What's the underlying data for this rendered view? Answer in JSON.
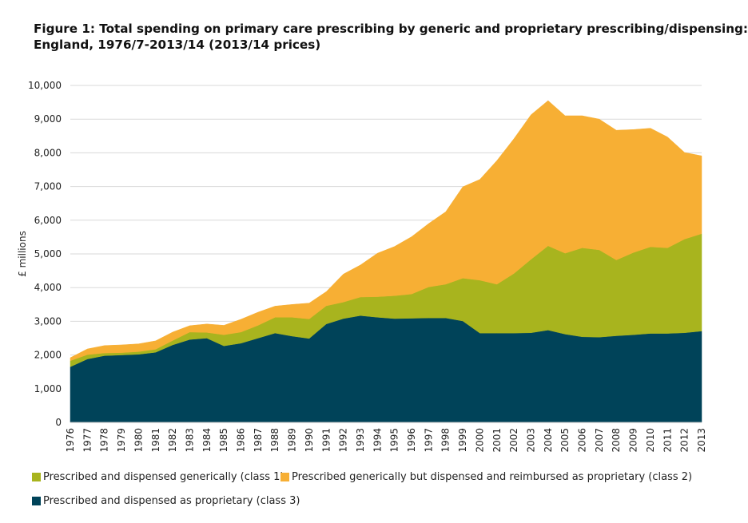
{
  "chart_data": {
    "type": "area",
    "stacked": true,
    "title_line1": "Figure 1: Total spending on primary care prescribing by generic and proprietary prescribing/dispensing:",
    "title_line2": "England, 1976/7-2013/14 (2013/14 prices)",
    "ylabel": "£ millions",
    "xlabel": "",
    "ylim": [
      0,
      10000
    ],
    "y_ticks": [
      "0",
      "1,000",
      "2,000",
      "3,000",
      "4,000",
      "5,000",
      "6,000",
      "7,000",
      "8,000",
      "9,000",
      "10,000"
    ],
    "y_tick_values": [
      0,
      1000,
      2000,
      3000,
      4000,
      5000,
      6000,
      7000,
      8000,
      9000,
      10000
    ],
    "grid": "horizontal",
    "legend_position": "bottom",
    "x": [
      "1976",
      "1977",
      "1978",
      "1979",
      "1980",
      "1981",
      "1982",
      "1983",
      "1984",
      "1985",
      "1986",
      "1987",
      "1988",
      "1989",
      "1990",
      "1991",
      "1992",
      "1993",
      "1994",
      "1995",
      "1996",
      "1997",
      "1998",
      "1999",
      "2000",
      "2001",
      "2002",
      "2003",
      "2004",
      "2005",
      "2006",
      "2007",
      "2008",
      "2009",
      "2010",
      "2011",
      "2012",
      "2013"
    ],
    "series": [
      {
        "name": "Prescribed and dispensed as proprietary (class 3)",
        "color": "#004359",
        "values": [
          1650,
          1880,
          1980,
          2000,
          2020,
          2080,
          2300,
          2460,
          2500,
          2270,
          2350,
          2500,
          2650,
          2560,
          2490,
          2920,
          3080,
          3170,
          3120,
          3080,
          3090,
          3100,
          3100,
          3010,
          2650,
          2650,
          2650,
          2660,
          2740,
          2620,
          2540,
          2530,
          2570,
          2600,
          2640,
          2640,
          2660,
          2710
        ]
      },
      {
        "name": "Prescribed and dispensed generically (class 1)",
        "color": "#a8b41e",
        "values": [
          180,
          130,
          80,
          70,
          80,
          90,
          130,
          220,
          170,
          330,
          330,
          380,
          470,
          560,
          580,
          540,
          490,
          550,
          610,
          680,
          720,
          920,
          1000,
          1270,
          1570,
          1450,
          1770,
          2180,
          2500,
          2400,
          2640,
          2590,
          2250,
          2440,
          2570,
          2540,
          2780,
          2890
        ]
      },
      {
        "name": "Prescribed generically but dispensed and reimbursed as proprietary (class 2)",
        "color": "#f7af34",
        "values": [
          90,
          170,
          220,
          230,
          230,
          250,
          250,
          190,
          250,
          280,
          380,
          390,
          330,
          380,
          470,
          420,
          830,
          950,
          1290,
          1460,
          1700,
          1880,
          2150,
          2710,
          2990,
          3670,
          4000,
          4290,
          4310,
          4080,
          3920,
          3880,
          3850,
          3650,
          3520,
          3290,
          2570,
          2310
        ]
      }
    ]
  },
  "legend": {
    "class1": "Prescribed and dispensed generically (class 1)",
    "class2": "Prescribed generically but dispensed and reimbursed as proprietary (class 2)",
    "class3": "Prescribed and dispensed as proprietary (class 3)"
  }
}
